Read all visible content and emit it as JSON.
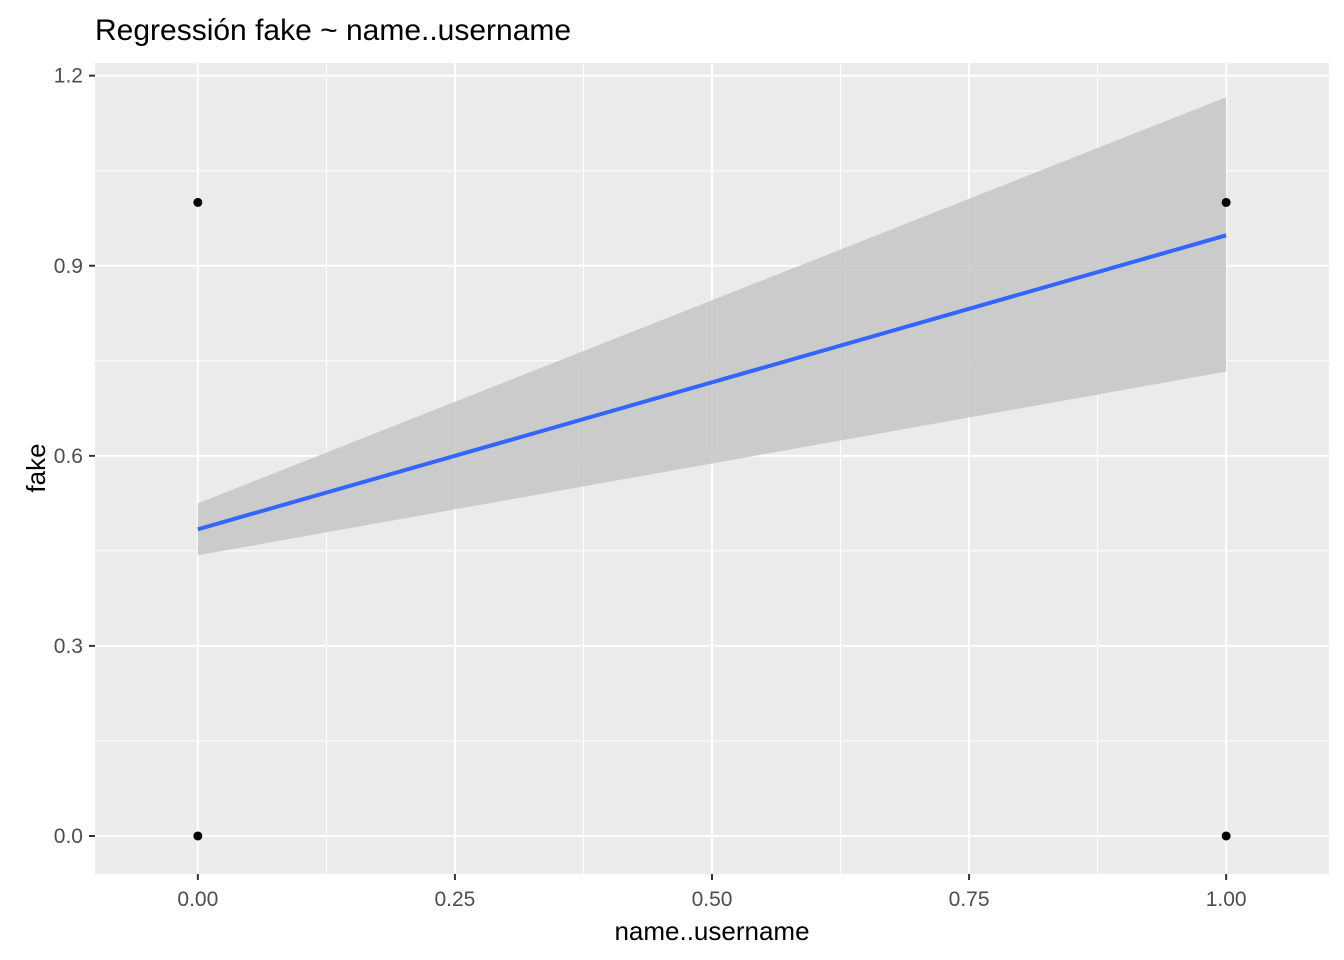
{
  "chart_data": {
    "type": "scatter",
    "title": "Regressión fake ~ name..username",
    "xlabel": "name..username",
    "ylabel": "fake",
    "xlim": [
      -0.1,
      1.1
    ],
    "ylim": [
      -0.06,
      1.22
    ],
    "x_ticks": [
      0.0,
      0.25,
      0.5,
      0.75,
      1.0
    ],
    "x_tick_labels": [
      "0.00",
      "0.25",
      "0.50",
      "0.75",
      "1.00"
    ],
    "y_ticks": [
      0.0,
      0.3,
      0.6,
      0.9,
      1.2
    ],
    "y_tick_labels": [
      "0.0",
      "0.3",
      "0.6",
      "0.9",
      "1.2"
    ],
    "points": [
      {
        "x": 0,
        "y": 1
      },
      {
        "x": 0,
        "y": 0
      },
      {
        "x": 1,
        "y": 1
      },
      {
        "x": 1,
        "y": 0
      }
    ],
    "fit_line": {
      "x": [
        0,
        1
      ],
      "y": [
        0.484,
        0.948
      ]
    },
    "confidence_band": {
      "x": [
        0,
        1
      ],
      "lower": [
        0.443,
        0.733
      ],
      "upper": [
        0.525,
        1.166
      ]
    },
    "grid": true,
    "colors": {
      "panel": "#EBEBEB",
      "grid": "#FFFFFF",
      "band": "#C6C6C6",
      "line": "#3366FF",
      "points": "#000000"
    }
  }
}
